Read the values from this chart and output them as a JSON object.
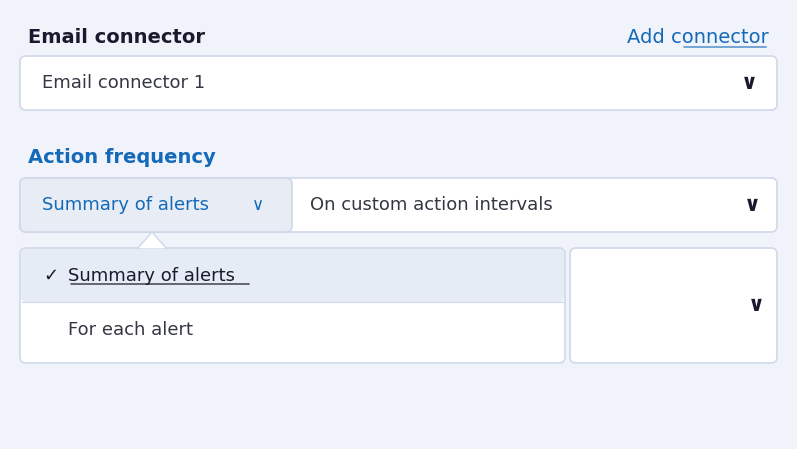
{
  "bg_color": "#f0f3fa",
  "white": "#ffffff",
  "light_blue_bg": "#e8edf5",
  "selected_item_bg": "#e6ecf5",
  "border_color": "#d0d8e8",
  "text_dark": "#1a1a2e",
  "text_blue": "#1469b8",
  "text_gray": "#343741",
  "label_fontsize": 13,
  "title_fontsize": 14,
  "item_fontsize": 13,
  "email_connector_label": "Email connector",
  "add_connector_label": "Add connector",
  "email_connector_1": "Email connector 1",
  "action_frequency_label": "Action frequency",
  "summary_of_alerts": "Summary of alerts",
  "on_custom_action_intervals": "On custom action intervals",
  "for_each_alert": "For each alert"
}
